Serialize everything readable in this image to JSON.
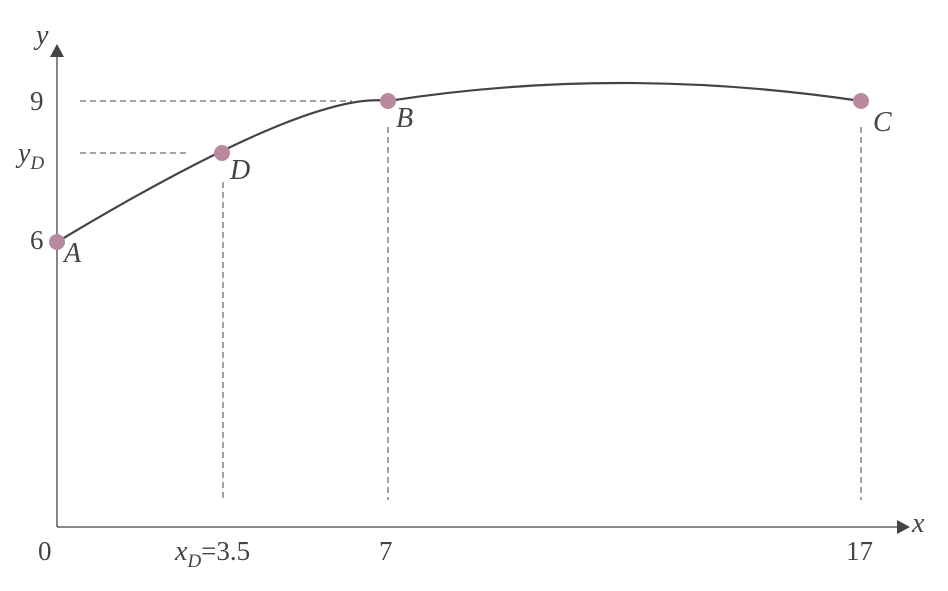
{
  "axes": {
    "x_label": "x",
    "y_label": "y",
    "x_ticks": [
      "0",
      "7",
      "17"
    ],
    "x_tick_d": {
      "prefix": "x",
      "sub": "D",
      "suffix": "=3.5"
    },
    "y_ticks": [
      "9",
      "6"
    ],
    "y_tick_d": {
      "prefix": "y",
      "sub": "D"
    }
  },
  "points": [
    {
      "name": "A",
      "x": 0,
      "y": 6
    },
    {
      "name": "D",
      "x": 3.5,
      "y": 7.9
    },
    {
      "name": "B",
      "x": 7,
      "y": 9
    },
    {
      "name": "C",
      "x": 17,
      "y": 9
    }
  ],
  "colors": {
    "point": "#b98a9f",
    "curve": "#444444",
    "axis": "#444444"
  }
}
